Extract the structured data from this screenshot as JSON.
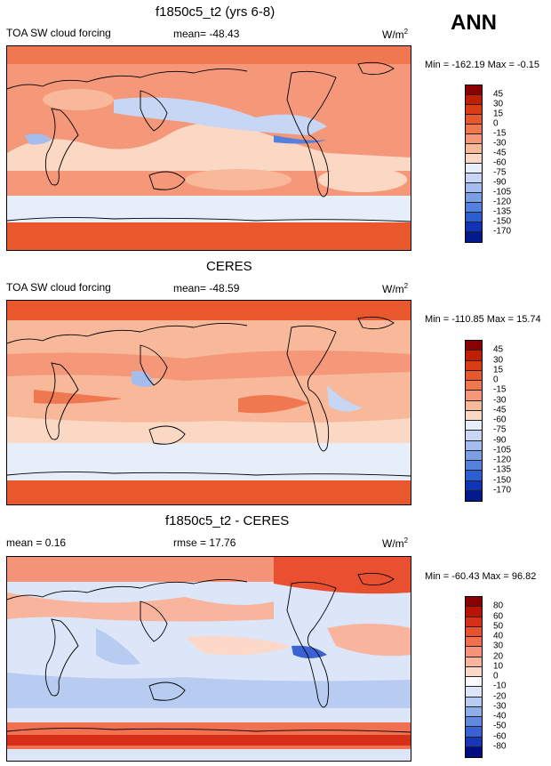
{
  "season_label": "ANN",
  "unit_base": "W/m",
  "unit_sup": "2",
  "panels": [
    {
      "title": "f1850c5_t2 (yrs 6-8)",
      "left_label": "TOA SW cloud forcing",
      "center_label": "mean= -48.43",
      "stats": "Min = -162.19 Max =  -0.15",
      "colorbar": {
        "labels": [
          "45",
          "30",
          "15",
          "0",
          "-15",
          "-30",
          "-45",
          "-60",
          "-75",
          "-90",
          "-105",
          "-120",
          "-135",
          "-150",
          "-170"
        ],
        "colors": [
          "#8b0000",
          "#c02000",
          "#dc3c14",
          "#e8582c",
          "#f07850",
          "#f5987a",
          "#f8b89a",
          "#fbd8c4",
          "#e6eefa",
          "#c6d6f4",
          "#a4bcee",
          "#7c9ee6",
          "#5480de",
          "#2c5ed2",
          "#1034b8",
          "#001a8c"
        ]
      }
    },
    {
      "title": "CERES",
      "left_label": "TOA SW cloud forcing",
      "center_label": "mean= -48.59",
      "stats": "Min = -110.85 Max =  15.74",
      "colorbar": {
        "labels": [
          "45",
          "30",
          "15",
          "0",
          "-15",
          "-30",
          "-45",
          "-60",
          "-75",
          "-90",
          "-105",
          "-120",
          "-135",
          "-150",
          "-170"
        ],
        "colors": [
          "#8b0000",
          "#c02000",
          "#dc3c14",
          "#e8582c",
          "#f07850",
          "#f5987a",
          "#f8b89a",
          "#fbd8c4",
          "#e6eefa",
          "#c6d6f4",
          "#a4bcee",
          "#7c9ee6",
          "#5480de",
          "#2c5ed2",
          "#1034b8",
          "#001a8c"
        ]
      }
    },
    {
      "title": "f1850c5_t2 - CERES",
      "left_label": "mean =   0.16",
      "center_label": "rmse =  17.76",
      "stats": "Min = -60.43 Max =  96.82",
      "colorbar": {
        "labels": [
          "80",
          "60",
          "50",
          "40",
          "30",
          "20",
          "10",
          "0",
          "-10",
          "-20",
          "-30",
          "-40",
          "-50",
          "-60",
          "-80"
        ],
        "colors": [
          "#8b0000",
          "#b81400",
          "#d83018",
          "#e85030",
          "#f07050",
          "#f59478",
          "#f8b49c",
          "#fcd8c8",
          "#fbfbff",
          "#dce6f8",
          "#b8ccf2",
          "#8eaeea",
          "#6488e0",
          "#3a62d4",
          "#1836b8",
          "#000c80"
        ]
      }
    }
  ]
}
